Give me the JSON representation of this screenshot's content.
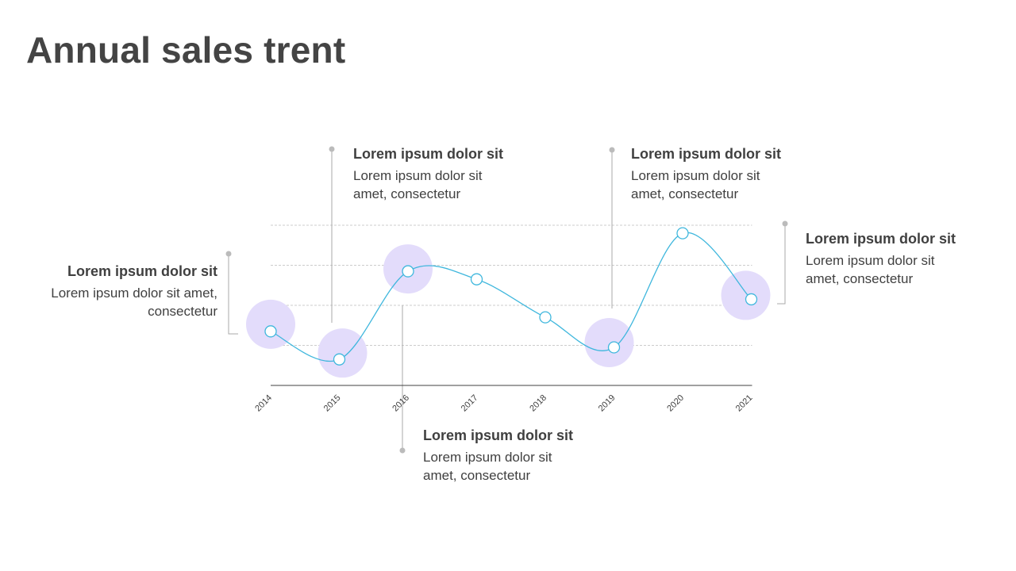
{
  "title": "Annual sales trent",
  "colors": {
    "line": "#3fb7dd",
    "marker_fill": "#ffffff",
    "highlight": "#e3dcfb",
    "grid": "#cccccc",
    "axis": "#404040",
    "leader": "#aaaaaa",
    "text": "#404040"
  },
  "chart_data": {
    "type": "line",
    "smooth": true,
    "categories": [
      "2014",
      "2015",
      "2016",
      "2017",
      "2018",
      "2019",
      "2020",
      "2021"
    ],
    "values": [
      1.35,
      0.65,
      2.85,
      2.65,
      1.7,
      0.95,
      3.8,
      2.15
    ],
    "ylim": [
      0,
      4
    ],
    "y_grid": true,
    "y_ticks_shown": false,
    "x_tick_rotation": -45,
    "highlighted_categories": [
      "2014",
      "2015",
      "2016",
      "2019",
      "2021"
    ]
  },
  "callouts": [
    {
      "title": "Lorem ipsum dolor sit",
      "body": "Lorem ipsum dolor sit amet, consectetur"
    },
    {
      "title": "Lorem ipsum dolor sit",
      "body": "Lorem ipsum dolor sit amet, consectetur"
    },
    {
      "title": "Lorem ipsum dolor sit",
      "body": "Lorem ipsum dolor sit amet, consectetur"
    },
    {
      "title": "Lorem ipsum dolor sit",
      "body": "Lorem ipsum dolor sit amet, consectetur"
    },
    {
      "title": "Lorem ipsum dolor sit",
      "body": "Lorem ipsum dolor sit amet, consectetur"
    }
  ]
}
